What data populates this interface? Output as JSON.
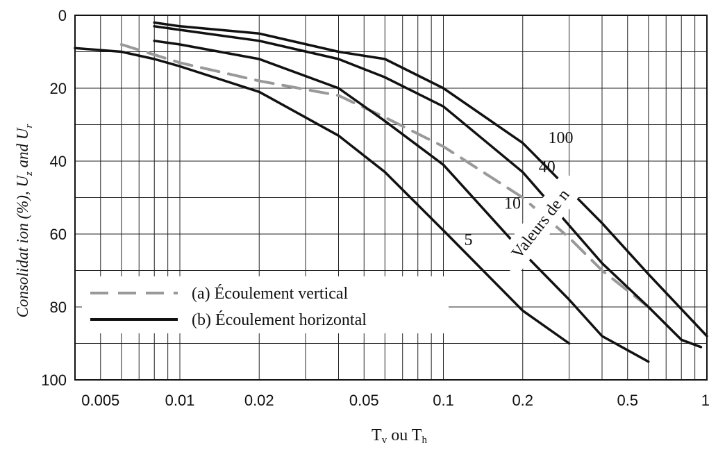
{
  "chart_data": {
    "type": "line",
    "xscale": "log",
    "xlim": [
      0.004,
      1
    ],
    "ylim": [
      0,
      100
    ],
    "y_inverted": true,
    "grid": true,
    "x_ticks": [
      {
        "v": 0.005,
        "label": "0.005"
      },
      {
        "v": 0.01,
        "label": "0.01"
      },
      {
        "v": 0.02,
        "label": "0.02"
      },
      {
        "v": 0.05,
        "label": "0.05"
      },
      {
        "v": 0.1,
        "label": "0.1"
      },
      {
        "v": 0.2,
        "label": "0.2"
      },
      {
        "v": 0.5,
        "label": "0.5"
      },
      {
        "v": 1,
        "label": "1"
      }
    ],
    "y_ticks": [
      {
        "v": 0,
        "label": "0"
      },
      {
        "v": 20,
        "label": "20"
      },
      {
        "v": 40,
        "label": "40"
      },
      {
        "v": 60,
        "label": "60"
      },
      {
        "v": 80,
        "label": "80"
      },
      {
        "v": 100,
        "label": "100"
      }
    ],
    "ylabel_prefix": "Consolidat ion (%), U",
    "ylabel_sub1": "z",
    "ylabel_mid": " and U",
    "ylabel_sub2": "r",
    "xlabel": {
      "t1": "T",
      "s1": "v",
      "mid": " ou ",
      "t2": "T",
      "s2": "h"
    },
    "legend_position": "bottom-left",
    "legend": [
      {
        "label": "(a) Écoulement vertical",
        "style": "dashed",
        "color": "#999999"
      },
      {
        "label": "(b) Écoulement horizontal",
        "style": "solid",
        "color": "#111111"
      }
    ],
    "annotation": "Valeurs de n",
    "series": [
      {
        "name": "(a) Écoulement vertical",
        "style": "dashed",
        "color": "#999999",
        "x": [
          0.006,
          0.01,
          0.02,
          0.04,
          0.06,
          0.1,
          0.2,
          0.3,
          0.4,
          0.6
        ],
        "y": [
          8,
          13,
          18,
          22,
          28,
          36,
          50,
          61,
          70,
          80
        ]
      },
      {
        "name": "5",
        "style": "solid",
        "color": "#111111",
        "x": [
          0.004,
          0.006,
          0.008,
          0.01,
          0.02,
          0.04,
          0.06,
          0.1,
          0.2,
          0.3
        ],
        "y": [
          9,
          10,
          12,
          14,
          21,
          33,
          43,
          59,
          81,
          90
        ]
      },
      {
        "name": "10",
        "style": "solid",
        "color": "#111111",
        "x": [
          0.008,
          0.01,
          0.02,
          0.04,
          0.06,
          0.1,
          0.2,
          0.3,
          0.4,
          0.6
        ],
        "y": [
          7,
          8,
          12,
          20,
          29,
          41,
          65,
          78,
          88,
          95
        ]
      },
      {
        "name": "40",
        "style": "solid",
        "color": "#111111",
        "x": [
          0.008,
          0.01,
          0.02,
          0.04,
          0.06,
          0.1,
          0.2,
          0.4,
          0.6,
          0.8,
          0.95
        ],
        "y": [
          3,
          4,
          7,
          12,
          17,
          25,
          43,
          68,
          80,
          89,
          91
        ]
      },
      {
        "name": "100",
        "style": "solid",
        "color": "#111111",
        "x": [
          0.008,
          0.01,
          0.02,
          0.04,
          0.06,
          0.1,
          0.2,
          0.4,
          0.6,
          1
        ],
        "y": [
          2,
          3,
          5,
          10,
          12,
          20,
          35,
          57,
          71,
          88
        ]
      }
    ],
    "curve_labels": [
      {
        "text": "100",
        "x": 0.25,
        "y": 35
      },
      {
        "text": "40",
        "x": 0.23,
        "y": 43
      },
      {
        "text": "10",
        "x": 0.17,
        "y": 53
      },
      {
        "text": "5",
        "x": 0.12,
        "y": 63
      }
    ]
  }
}
